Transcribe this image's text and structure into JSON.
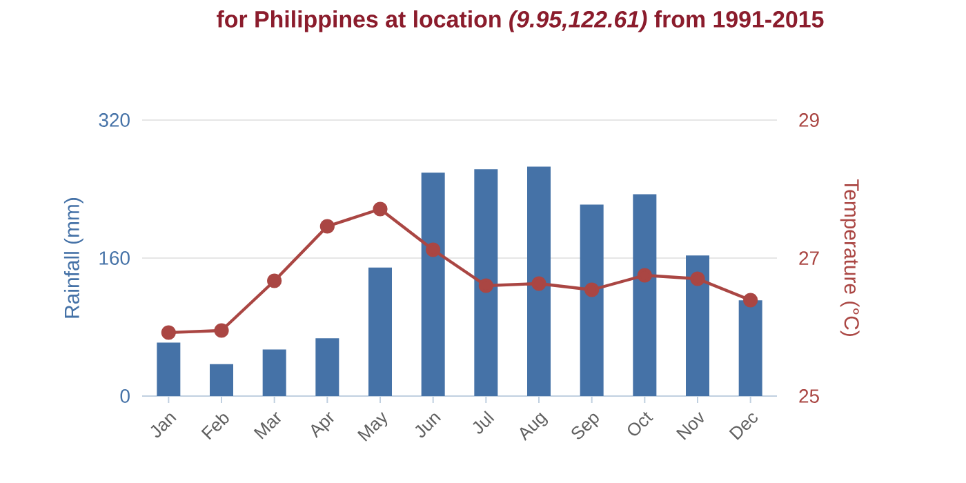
{
  "chart_data": {
    "type": "bar",
    "title": "for Philippines at location *(9.95,122.61)* from 1991-2015",
    "categories": [
      "Jan",
      "Feb",
      "Mar",
      "Apr",
      "May",
      "Jun",
      "Jul",
      "Aug",
      "Sep",
      "Oct",
      "Nov",
      "Dec"
    ],
    "ylabel": "Rainfall (mm)",
    "y2label": "Temperature (°C)",
    "ylim": [
      0,
      320
    ],
    "yticks": [
      0,
      160,
      320
    ],
    "y2lim": [
      25,
      29
    ],
    "y2ticks": [
      25,
      27,
      29
    ],
    "grid": "y",
    "marker": "circle",
    "series": [
      {
        "color": "#4572a7",
        "values": [
          62,
          37,
          54,
          67,
          149,
          259,
          263,
          266,
          222,
          234,
          163,
          111
        ]
      },
      {
        "type": "line",
        "axis": "y2",
        "color": "#aa4643",
        "values": [
          25.92,
          25.95,
          26.67,
          27.46,
          27.71,
          27.12,
          26.6,
          26.63,
          26.54,
          26.75,
          26.7,
          26.39
        ]
      }
    ]
  }
}
